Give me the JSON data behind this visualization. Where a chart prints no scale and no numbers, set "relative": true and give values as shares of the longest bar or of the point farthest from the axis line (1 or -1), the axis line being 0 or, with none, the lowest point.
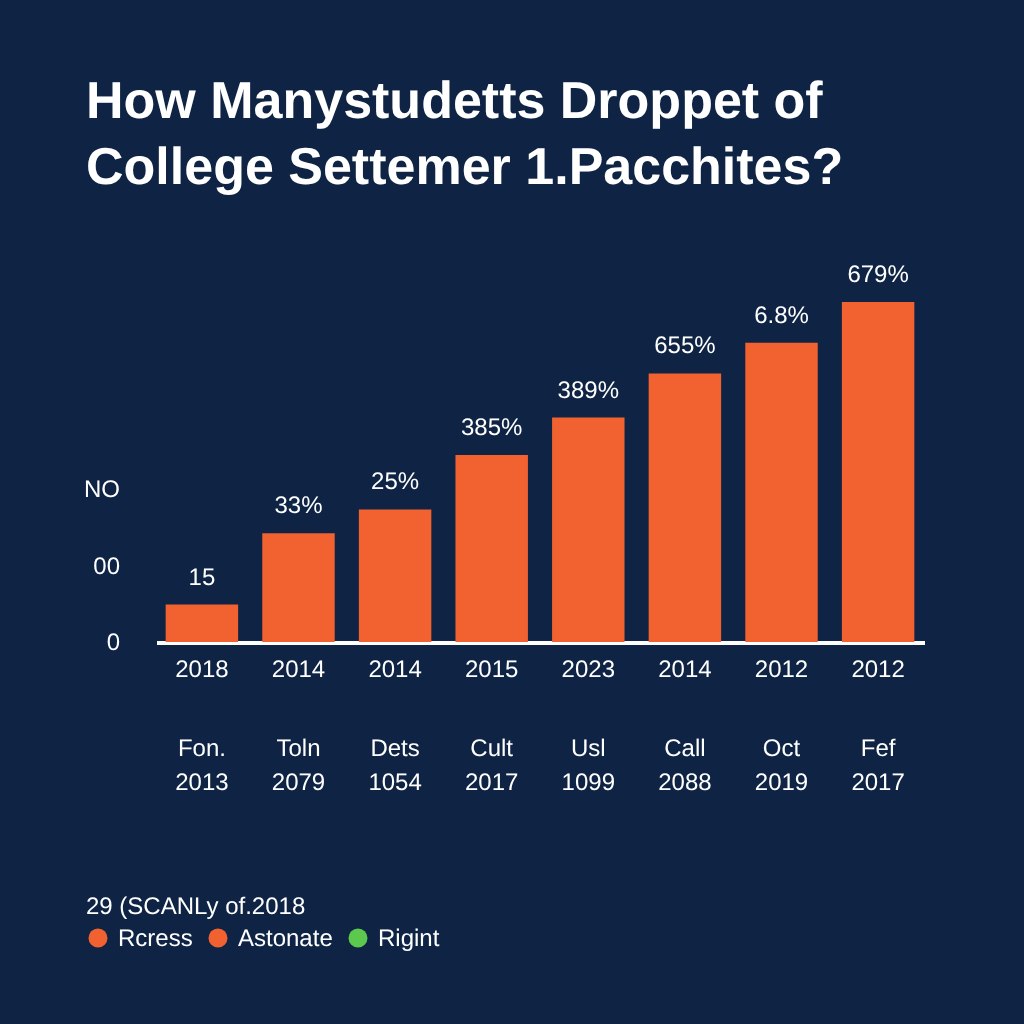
{
  "chart_data": {
    "type": "bar",
    "title": "How Manystudetts Droppet of College Settemer 1.Pacchites?",
    "relative": true,
    "categories": [
      "2018",
      "2014",
      "2014",
      "2015",
      "2023",
      "2014",
      "2012",
      "2012"
    ],
    "series": [
      {
        "name": "Rcress",
        "color": "#f26230",
        "values": [
          0.11,
          0.32,
          0.39,
          0.55,
          0.66,
          0.79,
          0.88,
          1
        ]
      },
      {
        "name": "Astonate",
        "color": "#f26230",
        "values": [
          null,
          null,
          null,
          null,
          null,
          null,
          null,
          null
        ]
      },
      {
        "name": "Rigint",
        "color": "#5cc84e",
        "values": [
          null,
          null,
          null,
          null,
          null,
          null,
          null,
          null
        ]
      }
    ],
    "annotations": [
      "NO",
      "00",
      "0",
      "15",
      "33%",
      "25%",
      "385%",
      "389%",
      "655%",
      "6.8%",
      "679%",
      "Fon. 2013",
      "Toln 2079",
      "Dets 1054",
      "Cult 2017",
      "Usl 1099",
      "Call 2088",
      "Oct 2019",
      "Fef 2017",
      "29 (SCANLy of.2018"
    ],
    "legend": "bottom left"
  }
}
